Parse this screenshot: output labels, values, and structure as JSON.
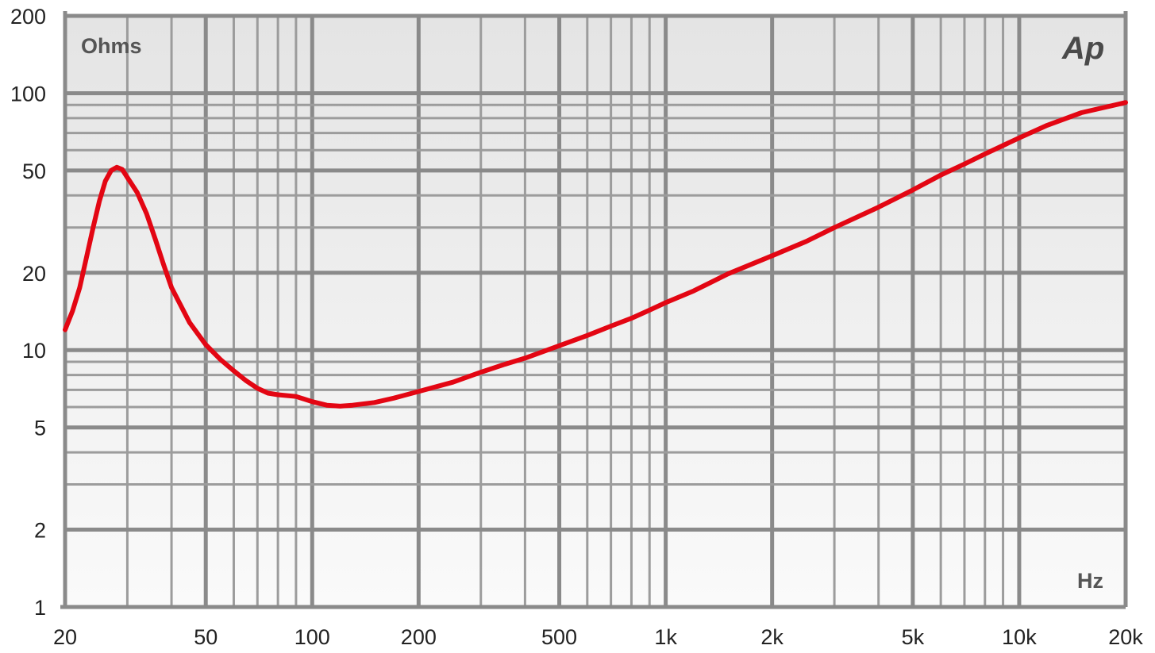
{
  "chart_data": {
    "type": "line",
    "title": "",
    "xlabel": "Hz",
    "ylabel": "Ohms",
    "x_scale": "log",
    "y_scale": "log",
    "xlim": [
      20,
      20000
    ],
    "ylim": [
      1,
      200
    ],
    "grid": true,
    "logo": "Ap",
    "x_ticks": [
      {
        "value": 20,
        "label": "20"
      },
      {
        "value": 50,
        "label": "50"
      },
      {
        "value": 100,
        "label": "100"
      },
      {
        "value": 200,
        "label": "200"
      },
      {
        "value": 500,
        "label": "500"
      },
      {
        "value": 1000,
        "label": "1k"
      },
      {
        "value": 2000,
        "label": "2k"
      },
      {
        "value": 5000,
        "label": "5k"
      },
      {
        "value": 10000,
        "label": "10k"
      },
      {
        "value": 20000,
        "label": "20k"
      }
    ],
    "y_ticks": [
      {
        "value": 1,
        "label": "1"
      },
      {
        "value": 2,
        "label": "2"
      },
      {
        "value": 5,
        "label": "5"
      },
      {
        "value": 10,
        "label": "10"
      },
      {
        "value": 20,
        "label": "20"
      },
      {
        "value": 50,
        "label": "50"
      },
      {
        "value": 100,
        "label": "100"
      },
      {
        "value": 200,
        "label": "200"
      }
    ],
    "series": [
      {
        "color": "#e30613",
        "x": [
          20,
          21,
          22,
          23,
          24,
          25,
          26,
          27,
          28,
          29,
          30,
          32,
          34,
          36,
          38,
          40,
          45,
          50,
          55,
          60,
          65,
          70,
          75,
          80,
          90,
          100,
          110,
          120,
          130,
          150,
          170,
          200,
          250,
          300,
          350,
          400,
          500,
          600,
          700,
          800,
          900,
          1000,
          1200,
          1500,
          2000,
          2500,
          3000,
          4000,
          5000,
          6000,
          7000,
          8000,
          10000,
          12000,
          15000,
          20000
        ],
        "y": [
          12,
          14.2,
          17.5,
          23,
          30,
          38,
          45.5,
          50,
          51.5,
          50.5,
          47,
          41,
          34,
          27,
          21.5,
          17.5,
          12.8,
          10.5,
          9.2,
          8.3,
          7.6,
          7.1,
          6.8,
          6.7,
          6.6,
          6.3,
          6.1,
          6.05,
          6.1,
          6.25,
          6.5,
          6.9,
          7.5,
          8.2,
          8.8,
          9.3,
          10.4,
          11.4,
          12.4,
          13.3,
          14.3,
          15.3,
          17.0,
          19.8,
          23.3,
          26.5,
          30,
          36,
          42,
          48,
          53,
          58,
          67,
          75,
          84,
          92
        ]
      }
    ]
  }
}
